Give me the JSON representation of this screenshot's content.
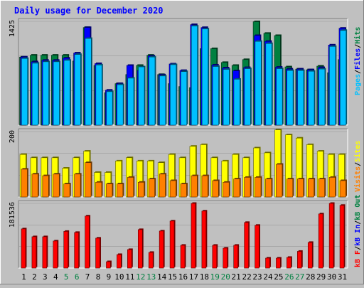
{
  "chart_data": [
    {
      "type": "bar",
      "title": "Daily usage for December 2020",
      "categories": [
        "1",
        "2",
        "3",
        "4",
        "5",
        "6",
        "7",
        "8",
        "9",
        "10",
        "11",
        "12",
        "13",
        "14",
        "15",
        "16",
        "17",
        "18",
        "19",
        "20",
        "21",
        "22",
        "23",
        "24",
        "25",
        "26",
        "27",
        "28",
        "29",
        "30",
        "31"
      ],
      "weekend_categories": [
        "5",
        "6",
        "12",
        "13",
        "19",
        "20",
        "26",
        "27"
      ],
      "ymax_label": "1425",
      "ylim": [
        0,
        1425
      ],
      "legend": [
        "Pages",
        "Files",
        "Hits"
      ],
      "series": [
        {
          "name": "Hits",
          "color": "#008040",
          "values": [
            935,
            960,
            960,
            960,
            960,
            880,
            1340,
            820,
            445,
            570,
            695,
            820,
            960,
            695,
            570,
            530,
            515,
            1050,
            1050,
            860,
            820,
            900,
            1420,
            1260,
            1230,
            800,
            770,
            760,
            810,
            720,
            900
          ]
        },
        {
          "name": "Files",
          "color": "#0000ff",
          "values": [
            935,
            870,
            890,
            890,
            920,
            990,
            1340,
            845,
            480,
            570,
            820,
            750,
            950,
            690,
            840,
            750,
            1380,
            1340,
            825,
            785,
            745,
            790,
            1230,
            1150,
            795,
            770,
            770,
            760,
            790,
            1100,
            1330
          ]
        },
        {
          "name": "Pages",
          "color": "#00c0ff",
          "values": [
            915,
            850,
            870,
            870,
            890,
            970,
            1190,
            825,
            460,
            555,
            645,
            800,
            935,
            675,
            830,
            735,
            1360,
            1320,
            805,
            765,
            630,
            775,
            1150,
            1120,
            775,
            750,
            750,
            740,
            770,
            1080,
            1300
          ]
        }
      ]
    },
    {
      "type": "bar",
      "ymax_label": "200",
      "ylim": [
        0,
        200
      ],
      "legend": [
        "Visits",
        "Sites"
      ],
      "series": [
        {
          "name": "Visits",
          "color": "#ffff00",
          "values": [
            130,
            120,
            120,
            120,
            88,
            120,
            140,
            75,
            75,
            110,
            120,
            110,
            110,
            105,
            130,
            120,
            155,
            160,
            120,
            110,
            130,
            120,
            150,
            135,
            205,
            190,
            180,
            160,
            140,
            130,
            130
          ]
        },
        {
          "name": "Sites",
          "color": "#ff8000",
          "values": [
            85,
            70,
            65,
            70,
            40,
            70,
            105,
            45,
            40,
            40,
            60,
            45,
            55,
            70,
            50,
            40,
            65,
            65,
            50,
            45,
            55,
            60,
            60,
            55,
            100,
            55,
            55,
            55,
            55,
            60,
            50
          ]
        }
      ]
    },
    {
      "type": "bar",
      "ymax_label": "181536",
      "ylim": [
        0,
        181536
      ],
      "legend": [
        "kB F",
        "kB In",
        "kB Out"
      ],
      "series": [
        {
          "name": "kB F",
          "color": "#ff0000",
          "values": [
            110000,
            88000,
            88000,
            76000,
            103000,
            100000,
            146000,
            84000,
            18000,
            38000,
            52000,
            108000,
            44000,
            104000,
            132000,
            64000,
            181536,
            160000,
            64000,
            56000,
            64000,
            128000,
            120000,
            28000,
            28000,
            30000,
            47000,
            72000,
            152000,
            181536,
            176000
          ]
        }
      ]
    }
  ]
}
